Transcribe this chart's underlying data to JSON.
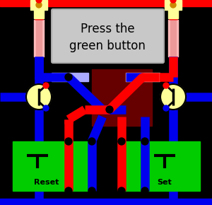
{
  "bg_color": "#000000",
  "title_text": "Press the\ngreen button",
  "title_box_color": "#c8c8c8",
  "title_text_color": "#000000",
  "red": "#ff0000",
  "blue": "#0000ee",
  "dark_red": "#660000",
  "pink_res": "#ffbbbb",
  "light_blue_res": "#aaaaff",
  "green_box": "#00cc00",
  "yellow": "#ffff99",
  "figsize": [
    3.0,
    2.9
  ],
  "dpi": 100
}
